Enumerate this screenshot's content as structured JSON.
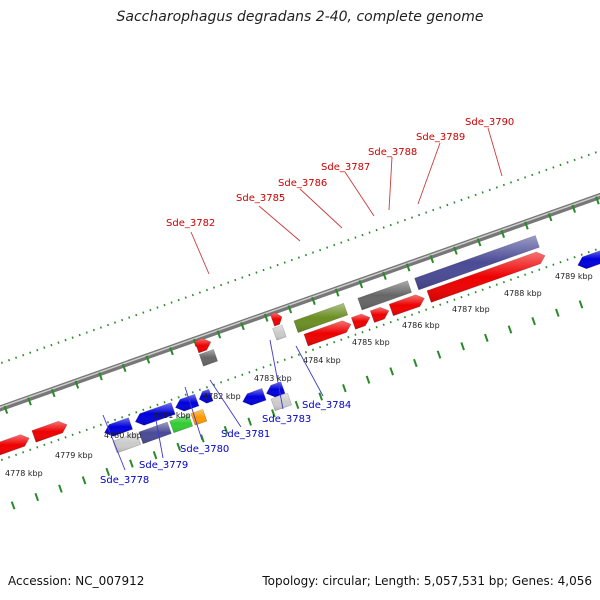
{
  "title": "Saccharophagus degradans 2-40, complete genome",
  "footer": {
    "accession": "Accession: NC_007912",
    "summary": "Topology: circular; Length: 5,057,531 bp; Genes: 4,056"
  },
  "colors": {
    "forward": "#ee0000",
    "reverse": "#0000dd",
    "dark_gray": "#666666",
    "light_gray": "#cccccc",
    "slate_blue": "#4a4a96",
    "olive": "#6b8e23",
    "green": "#33cc33",
    "orange": "#ff9900",
    "backbone": "#888888",
    "ticks": "#2a8a2a",
    "forward_label": "#cc0000",
    "reverse_label": "#0000cc"
  },
  "tick_labels": [
    "4778 kbp",
    "4779 kbp",
    "4780 kbp",
    "4781 kbp",
    "4782 kbp",
    "4783 kbp",
    "4784 kbp",
    "4785 kbp",
    "4786 kbp",
    "4787 kbp",
    "4788 kbp",
    "4789 kbp"
  ],
  "gene_labels": {
    "forward": [
      "Sde_3782",
      "Sde_3785",
      "Sde_3786",
      "Sde_3787",
      "Sde_3788",
      "Sde_3789",
      "Sde_3790"
    ],
    "reverse": [
      "Sde_3778",
      "Sde_3779",
      "Sde_3780",
      "Sde_3781",
      "Sde_3783",
      "Sde_3784"
    ]
  },
  "features": [
    {
      "strand": "+",
      "row": 1,
      "start": 4777.55,
      "end": 4778.25,
      "color": "forward",
      "arrow": true
    },
    {
      "strand": "+",
      "row": 1,
      "start": 4778.35,
      "end": 4779.05,
      "color": "forward",
      "arrow": true
    },
    {
      "strand": "-",
      "row": 1,
      "start": 4779.7,
      "end": 4780.25,
      "color": "reverse",
      "arrow": true
    },
    {
      "strand": "-",
      "row": 1,
      "start": 4780.35,
      "end": 4781.15,
      "color": "reverse",
      "arrow": true
    },
    {
      "strand": "-",
      "row": 1,
      "start": 4781.2,
      "end": 4781.65,
      "color": "reverse",
      "arrow": true
    },
    {
      "strand": "-",
      "row": 1,
      "start": 4781.7,
      "end": 4781.95,
      "color": "reverse",
      "arrow": true
    },
    {
      "strand": "-",
      "row": 2,
      "start": 4779.8,
      "end": 4780.3,
      "color": "light_gray",
      "arrow": false
    },
    {
      "strand": "-",
      "row": 2,
      "start": 4780.35,
      "end": 4780.95,
      "color": "slate_blue",
      "arrow": false
    },
    {
      "strand": "-",
      "row": 2,
      "start": 4781.0,
      "end": 4781.4,
      "color": "green",
      "arrow": false
    },
    {
      "strand": "-",
      "row": 2,
      "start": 4781.45,
      "end": 4781.7,
      "color": "orange",
      "arrow": false
    },
    {
      "strand": "+",
      "row": 2,
      "start": 4782.0,
      "end": 4782.3,
      "color": "dark_gray",
      "arrow": false
    },
    {
      "strand": "+",
      "row": 3,
      "start": 4782.0,
      "end": 4782.3,
      "color": "forward",
      "arrow": true
    },
    {
      "strand": "-",
      "row": 2,
      "start": 4782.5,
      "end": 4782.95,
      "color": "reverse",
      "arrow": true
    },
    {
      "strand": "-",
      "row": 2,
      "start": 4783.0,
      "end": 4783.35,
      "color": "reverse",
      "arrow": true
    },
    {
      "strand": "-",
      "row": 3,
      "start": 4783.05,
      "end": 4783.4,
      "color": "light_gray",
      "arrow": false
    },
    {
      "strand": "+",
      "row": 2,
      "start": 4783.55,
      "end": 4783.75,
      "color": "light_gray",
      "arrow": false
    },
    {
      "strand": "+",
      "row": 3,
      "start": 4783.6,
      "end": 4783.8,
      "color": "forward",
      "arrow": true
    },
    {
      "strand": "+",
      "row": 2,
      "start": 4784.0,
      "end": 4785.05,
      "color": "olive",
      "arrow": false
    },
    {
      "strand": "+",
      "row": 1,
      "start": 4784.1,
      "end": 4785.05,
      "color": "forward",
      "arrow": true
    },
    {
      "strand": "+",
      "row": 1,
      "start": 4785.1,
      "end": 4785.45,
      "color": "forward",
      "arrow": true
    },
    {
      "strand": "+",
      "row": 2,
      "start": 4785.35,
      "end": 4786.4,
      "color": "dark_gray",
      "arrow": false
    },
    {
      "strand": "+",
      "row": 1,
      "start": 4785.5,
      "end": 4785.85,
      "color": "forward",
      "arrow": true
    },
    {
      "strand": "+",
      "row": 1,
      "start": 4785.9,
      "end": 4786.6,
      "color": "forward",
      "arrow": true
    },
    {
      "strand": "+",
      "row": 2,
      "start": 4786.55,
      "end": 4789.1,
      "color": "slate_blue",
      "arrow": false
    },
    {
      "strand": "+",
      "row": 1,
      "start": 4786.7,
      "end": 4789.15,
      "color": "forward",
      "arrow": true
    },
    {
      "strand": "-",
      "row": 1,
      "start": 4789.7,
      "end": 4790.3,
      "color": "reverse",
      "arrow": true
    }
  ]
}
